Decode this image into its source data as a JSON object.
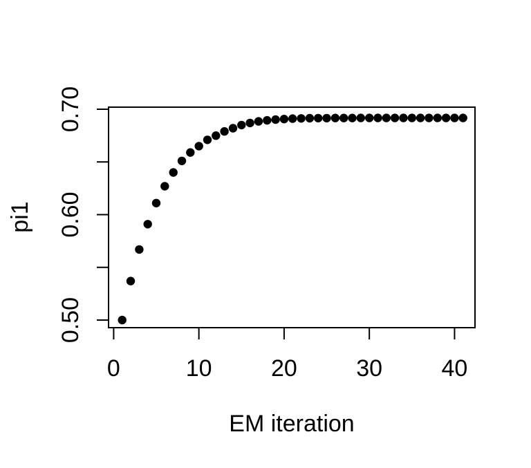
{
  "figure": {
    "background_color": "#ffffff",
    "foreground_color": "#000000"
  },
  "chart_data": {
    "type": "scatter",
    "title": "",
    "xlabel": "EM iteration",
    "ylabel": "pi1",
    "x": [
      1,
      2,
      3,
      4,
      5,
      6,
      7,
      8,
      9,
      10,
      11,
      12,
      13,
      14,
      15,
      16,
      17,
      18,
      19,
      20,
      21,
      22,
      23,
      24,
      25,
      26,
      27,
      28,
      29,
      30,
      31,
      32,
      33,
      34,
      35,
      36,
      37,
      38,
      39,
      40,
      41
    ],
    "y": [
      0.5,
      0.537,
      0.567,
      0.591,
      0.611,
      0.627,
      0.64,
      0.651,
      0.659,
      0.665,
      0.671,
      0.675,
      0.679,
      0.682,
      0.685,
      0.687,
      0.6885,
      0.6895,
      0.6902,
      0.6907,
      0.6911,
      0.6913,
      0.6915,
      0.6916,
      0.6916,
      0.6917,
      0.6917,
      0.6917,
      0.6918,
      0.6918,
      0.6918,
      0.6918,
      0.6918,
      0.6918,
      0.6918,
      0.6918,
      0.6918,
      0.6918,
      0.6918,
      0.6918,
      0.6918
    ],
    "xlim": [
      -0.6,
      42.4
    ],
    "ylim": [
      0.4928,
      0.702
    ],
    "xticks": [
      {
        "value": 0,
        "label": "0"
      },
      {
        "value": 10,
        "label": "10"
      },
      {
        "value": 20,
        "label": "20"
      },
      {
        "value": 30,
        "label": "30"
      },
      {
        "value": 40,
        "label": "40"
      }
    ],
    "yticks": [
      {
        "value": 0.5,
        "label": "0.50"
      },
      {
        "value": 0.55,
        "label": ""
      },
      {
        "value": 0.6,
        "label": "0.60"
      },
      {
        "value": 0.65,
        "label": ""
      },
      {
        "value": 0.7,
        "label": "0.70"
      }
    ],
    "grid": false,
    "legend": null,
    "marker": {
      "shape": "filled-circle",
      "color": "#000000"
    }
  }
}
